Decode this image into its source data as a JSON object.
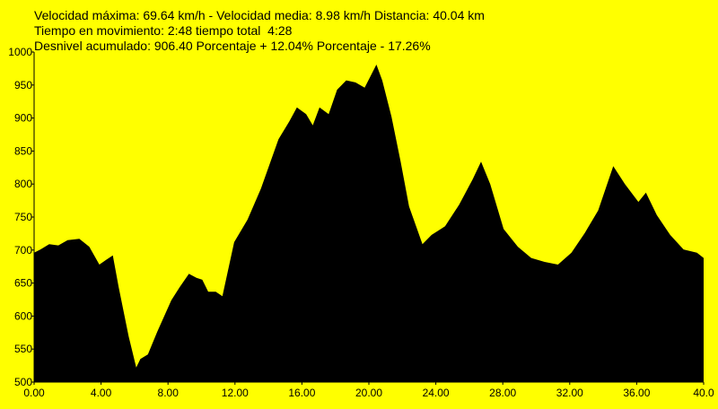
{
  "chart_data": {
    "type": "area",
    "annotations": [
      "Velocidad máxima: 69.64 km/h - Velocidad media: 8.98 km/h Distancia: 40.04 km",
      "Tiempo en movimiento: 2:48 tiempo total  4:28",
      "Desnivel acumulado: 906.40 Porcentaje + 12.04% Porcentaje - 17.26%"
    ],
    "color": "#000000",
    "background": "#ffff00",
    "x": [
      0,
      0.38,
      0.9,
      1.45,
      2,
      2.7,
      3.3,
      3.9,
      4.3,
      4.7,
      5.05,
      5.65,
      6.1,
      6.35,
      6.8,
      7.35,
      8.2,
      8.7,
      9.25,
      9.7,
      10.05,
      10.4,
      10.85,
      11.25,
      11.95,
      12.75,
      13.55,
      14.6,
      15.25,
      15.7,
      16.25,
      16.65,
      17.05,
      17.6,
      18.1,
      18.65,
      19.2,
      19.75,
      20.45,
      20.8,
      21.35,
      21.9,
      22.4,
      23.2,
      23.75,
      24.55,
      25.4,
      26.2,
      26.7,
      27.25,
      28.05,
      28.9,
      29.7,
      30.5,
      31.3,
      32.1,
      32.9,
      33.7,
      34.6,
      35.3,
      36.1,
      36.55,
      37.2,
      38,
      38.8,
      39.6,
      40
    ],
    "series": [
      {
        "color": "#000000",
        "values": [
          696,
          701,
          709,
          707,
          715,
          717,
          705,
          678,
          685,
          692,
          644,
          569,
          522,
          535,
          542,
          576,
          624,
          644,
          664,
          658,
          655,
          637,
          637,
          630,
          712,
          746,
          793,
          868,
          895,
          916,
          906,
          889,
          916,
          906,
          943,
          957,
          954,
          946,
          981,
          957,
          902,
          834,
          766,
          709,
          723,
          736,
          769,
          807,
          834,
          800,
          732,
          705,
          688,
          682,
          678,
          696,
          726,
          760,
          827,
          800,
          773,
          787,
          753,
          723,
          701,
          696,
          688
        ]
      }
    ],
    "xlim": [
      0,
      40
    ],
    "ylim": [
      500,
      1000
    ],
    "xticks": [
      {
        "value": 0,
        "label": "0.00"
      },
      {
        "value": 4,
        "label": "4.00"
      },
      {
        "value": 8,
        "label": "8.00"
      },
      {
        "value": 12,
        "label": "12.00"
      },
      {
        "value": 16,
        "label": "16.00"
      },
      {
        "value": 20,
        "label": "20.00"
      },
      {
        "value": 24,
        "label": "24.00"
      },
      {
        "value": 28,
        "label": "28.00"
      },
      {
        "value": 32,
        "label": "32.00"
      },
      {
        "value": 36,
        "label": "36.00"
      },
      {
        "value": 40,
        "label": "40.0"
      }
    ],
    "yticks": [
      500,
      550,
      600,
      650,
      700,
      750,
      800,
      850,
      900,
      950,
      1000
    ]
  }
}
